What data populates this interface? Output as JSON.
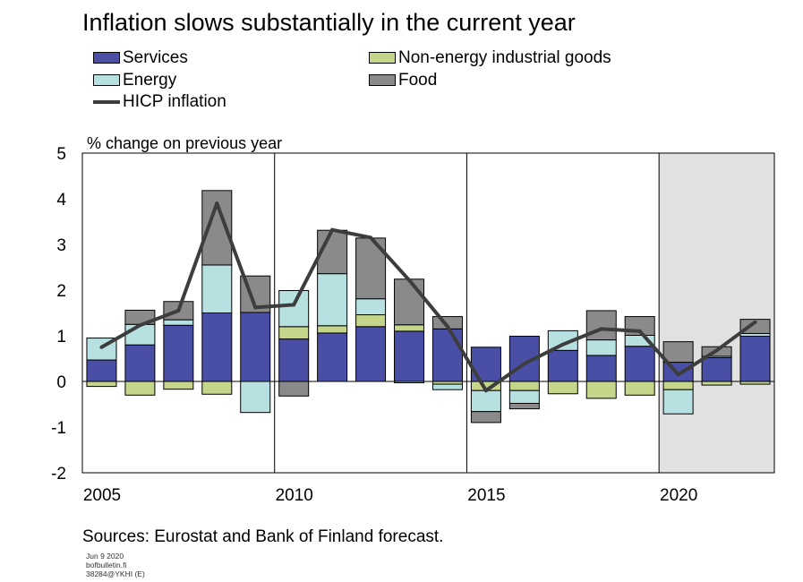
{
  "title": "Inflation slows substantially in the current year",
  "legend": [
    {
      "label": "Services",
      "color": "#4a4fa6",
      "kind": "bar"
    },
    {
      "label": "Non-energy industrial goods",
      "color": "#c5d68a",
      "kind": "bar"
    },
    {
      "label": "Energy",
      "color": "#b7e0e0",
      "kind": "bar"
    },
    {
      "label": "Food",
      "color": "#8a8a8a",
      "kind": "bar"
    },
    {
      "label": "HICP inflation",
      "color": "#3d3d3d",
      "kind": "line"
    }
  ],
  "ylabel": "% change on previous year",
  "sources": "Sources: Eurostat and Bank of Finland forecast.",
  "footnote": [
    "Jun 9 2020",
    "bofbulletin.fi",
    "38284@YKHI (E)"
  ],
  "chart_data": {
    "type": "bar",
    "stacked": true,
    "categories": [
      2005,
      2006,
      2007,
      2008,
      2009,
      2010,
      2011,
      2012,
      2013,
      2014,
      2015,
      2016,
      2017,
      2018,
      2019,
      2020,
      2021,
      2022
    ],
    "x_tick_labels": [
      "2005",
      "2010",
      "2015",
      "2020"
    ],
    "ylim": [
      -2,
      5
    ],
    "y_ticks": [
      -2,
      -1,
      0,
      1,
      2,
      3,
      4,
      5
    ],
    "forecast_start": 2020,
    "series": [
      {
        "name": "Services",
        "values": [
          0.47,
          0.8,
          1.23,
          1.5,
          1.51,
          0.93,
          1.06,
          1.2,
          1.1,
          1.15,
          0.75,
          0.99,
          0.68,
          0.57,
          0.77,
          0.42,
          0.52,
          0.99
        ]
      },
      {
        "name": "Non-energy industrial goods",
        "values": [
          -0.11,
          -0.3,
          -0.17,
          -0.28,
          0.0,
          0.27,
          0.16,
          0.26,
          0.14,
          -0.06,
          -0.2,
          -0.2,
          -0.27,
          -0.37,
          -0.3,
          -0.18,
          -0.08,
          -0.06
        ]
      },
      {
        "name": "Energy",
        "values": [
          0.48,
          0.45,
          0.12,
          1.05,
          -0.68,
          0.79,
          1.14,
          0.35,
          -0.03,
          -0.12,
          -0.46,
          -0.28,
          0.43,
          0.34,
          0.24,
          -0.53,
          0.03,
          0.06
        ]
      },
      {
        "name": "Food",
        "values": [
          0.0,
          0.31,
          0.4,
          1.63,
          0.8,
          -0.32,
          0.95,
          1.33,
          1.0,
          0.27,
          -0.24,
          -0.12,
          0.0,
          0.64,
          0.41,
          0.45,
          0.21,
          0.31
        ]
      }
    ],
    "line": {
      "name": "HICP inflation",
      "values": [
        0.75,
        1.23,
        1.55,
        3.9,
        1.62,
        1.68,
        3.32,
        3.15,
        2.22,
        1.2,
        -0.2,
        0.39,
        0.81,
        1.15,
        1.1,
        0.15,
        0.68,
        1.3
      ]
    }
  }
}
